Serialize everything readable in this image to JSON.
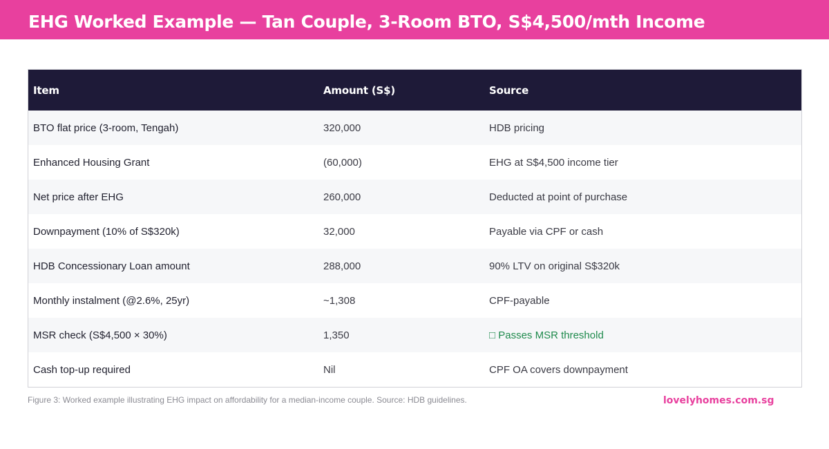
{
  "header": {
    "title": "EHG Worked Example — Tan Couple, 3-Room BTO, S$4,500/mth Income"
  },
  "table": {
    "columns": [
      "Item",
      "Amount (S$)",
      "Source"
    ],
    "rows": [
      {
        "item": "BTO flat price (3-room, Tengah)",
        "amount": "320,000",
        "source": "HDB pricing"
      },
      {
        "item": "Enhanced Housing Grant",
        "amount": "(60,000)",
        "source": "EHG at S$4,500 income tier"
      },
      {
        "item": "Net price after EHG",
        "amount": "260,000",
        "source": "Deducted at point of purchase"
      },
      {
        "item": "Downpayment (10% of S$320k)",
        "amount": "32,000",
        "source": "Payable via CPF or cash"
      },
      {
        "item": "HDB Concessionary Loan amount",
        "amount": "288,000",
        "source": "90% LTV on original S$320k"
      },
      {
        "item": "Monthly instalment (@2.6%, 25yr)",
        "amount": "~1,308",
        "source": "CPF-payable"
      },
      {
        "item": "MSR check (S$4,500 × 30%)",
        "amount": "1,350",
        "source": "□ Passes MSR threshold"
      },
      {
        "item": "Cash top-up required",
        "amount": "Nil",
        "source": "CPF OA covers downpayment"
      }
    ]
  },
  "footer": {
    "caption": "Figure 3: Worked example illustrating EHG impact on affordability for a median-income couple. Source: HDB guidelines.",
    "brand": "lovelyhomes.com.sg"
  },
  "colors": {
    "accent": "#e8409e",
    "header_bg": "#1e1a38",
    "pass_text": "#1e8a4c"
  }
}
